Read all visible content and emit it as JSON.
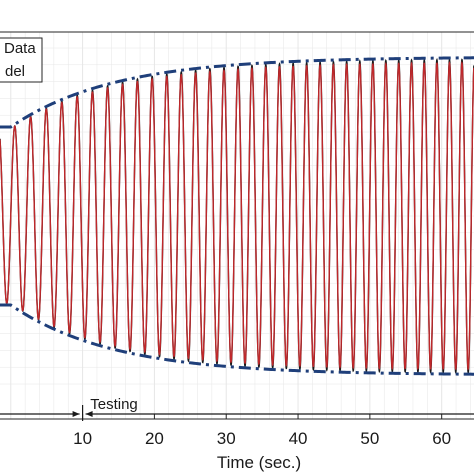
{
  "chart_data": {
    "type": "line",
    "xlabel": "Time (sec.)",
    "ylabel": "",
    "title": "",
    "xlim": [
      -1.5,
      64.5
    ],
    "ylim": [
      -1.0,
      1.0
    ],
    "x_ticks": [
      10,
      20,
      30,
      40,
      50,
      60
    ],
    "grid": true,
    "legend_placement": "top-left",
    "legend_entries": [
      "Data",
      "del"
    ],
    "series": [
      {
        "name": "Data",
        "color": "#1a1a1a",
        "signal": "chirp",
        "freq_start_hz": 0.45,
        "freq_end_hz": 0.58,
        "amplitude_start": 0.52,
        "amplitude_end": 0.93
      },
      {
        "name": "del",
        "color": "#c0282b",
        "signal": "chirp",
        "freq_start_hz": 0.45,
        "freq_end_hz": 0.58,
        "amplitude_start": 0.52,
        "amplitude_end": 0.91
      },
      {
        "name": "envelope",
        "color": "#1f3f7a",
        "style": "dash-dot",
        "points": [
          [
            0,
            0.52
          ],
          [
            10,
            0.7
          ],
          [
            20,
            0.79
          ],
          [
            30,
            0.85
          ],
          [
            40,
            0.89
          ],
          [
            50,
            0.915
          ],
          [
            60,
            0.93
          ]
        ]
      }
    ],
    "annotations": [
      {
        "text": "Testing",
        "from_x": 10,
        "to_x": 64.5
      },
      {
        "text": "",
        "from_x": -1.5,
        "to_x": 10
      }
    ]
  },
  "colors": {
    "grid": "#e6e6e6",
    "axis": "#262626",
    "data": "#1a1a1a",
    "model": "#c0282b",
    "envelope": "#1f3f7a"
  }
}
